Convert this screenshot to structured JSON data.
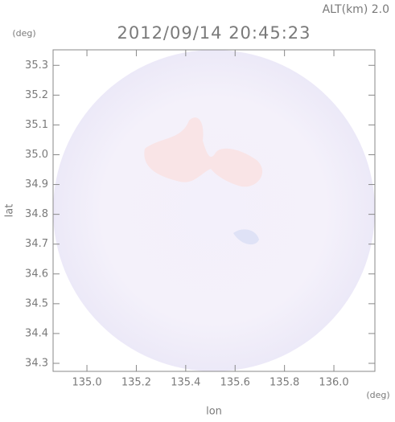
{
  "chart_data": {
    "type": "radar-map",
    "title": "2012/09/14 20:45:23",
    "annotation": "ALT(km) 2.0",
    "xlabel": "lon",
    "ylabel": "lat",
    "xunit": "(deg)",
    "yunit": "(deg)",
    "xlim": [
      134.863,
      136.166
    ],
    "ylim": [
      34.273,
      35.352
    ],
    "xticks": [
      {
        "value": 135,
        "label": "135.0"
      },
      135.2,
      135.4,
      135.6,
      135.8,
      {
        "value": 136,
        "label": "136.0"
      }
    ],
    "yticks": [
      34.3,
      34.4,
      34.5,
      34.6,
      34.7,
      34.8,
      34.9,
      {
        "value": 35,
        "label": "35.0"
      },
      35.1,
      35.2,
      35.3
    ]
  }
}
